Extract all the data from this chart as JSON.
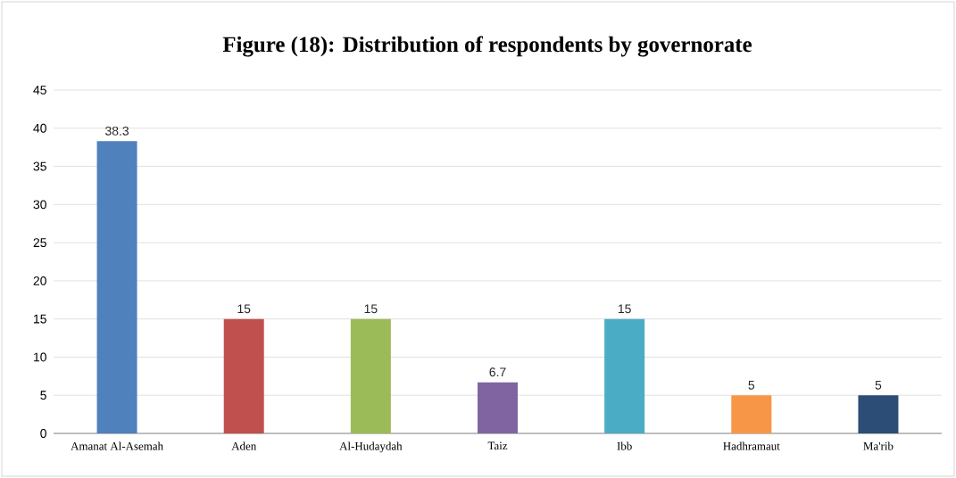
{
  "chart_data": {
    "type": "bar",
    "title": "Figure (18): Distribution of respondents by governorate",
    "categories": [
      "Amanat Al-Asemah",
      "Aden",
      "Al-Hudaydah",
      "Taiz",
      "Ibb",
      "Hadhramaut",
      "Ma'rib"
    ],
    "values": [
      38.3,
      15,
      15,
      6.7,
      15,
      5,
      5
    ],
    "colors": [
      "#4f81bd",
      "#c0504d",
      "#9bbb59",
      "#8064a2",
      "#4bacc6",
      "#f79646",
      "#2c4d75"
    ],
    "ylim": [
      0,
      45
    ],
    "yticks": [
      0,
      5,
      10,
      15,
      20,
      25,
      30,
      35,
      40,
      45
    ],
    "grid": "y",
    "data_labels": true
  }
}
